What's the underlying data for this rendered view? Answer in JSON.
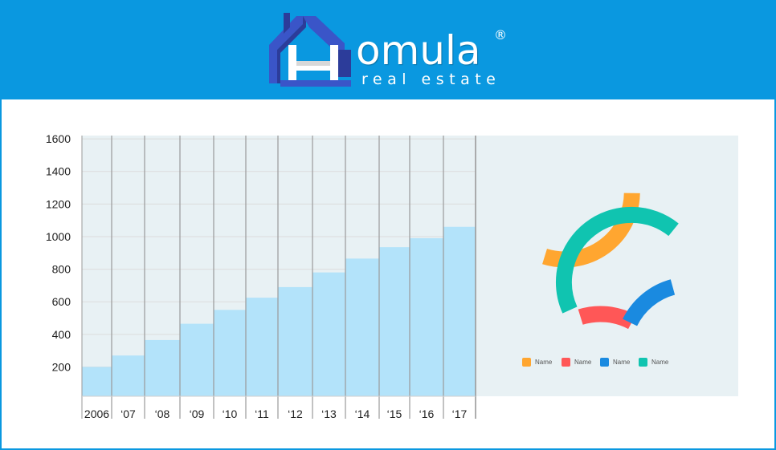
{
  "brand": {
    "name": "omula",
    "registered": "®",
    "tagline": "real estate",
    "colors": {
      "header": "#0a98e0",
      "mark_dark": "#2c3c9a",
      "mark_light": "#3a55c8"
    }
  },
  "chart_data": [
    {
      "type": "bar",
      "categories": [
        "2006",
        "‘07",
        "‘08",
        "‘09",
        "‘10",
        "‘11",
        "‘12",
        "‘13",
        "‘14",
        "‘15",
        "‘16",
        "‘17"
      ],
      "values": [
        200,
        270,
        365,
        465,
        550,
        625,
        690,
        780,
        865,
        935,
        990,
        1060
      ],
      "yticks": [
        200,
        400,
        600,
        800,
        1000,
        1200,
        1400,
        1600
      ],
      "ylim": [
        20,
        1620
      ],
      "grid": true,
      "colors": {
        "bar": "#b3e3fa",
        "plot_bg": "#e8f1f4",
        "divider": "#9a9a9a"
      }
    },
    {
      "type": "pie",
      "style": "donut",
      "slices": [
        {
          "label": "Name",
          "value": 30,
          "color": "#ffa630"
        },
        {
          "label": "Name",
          "value": 13,
          "color": "#ff5757"
        },
        {
          "label": "Name",
          "value": 14,
          "color": "#1a8ae0"
        },
        {
          "label": "Name",
          "value": 43,
          "color": "#10c4b0"
        }
      ],
      "legend_position": "bottom"
    }
  ]
}
